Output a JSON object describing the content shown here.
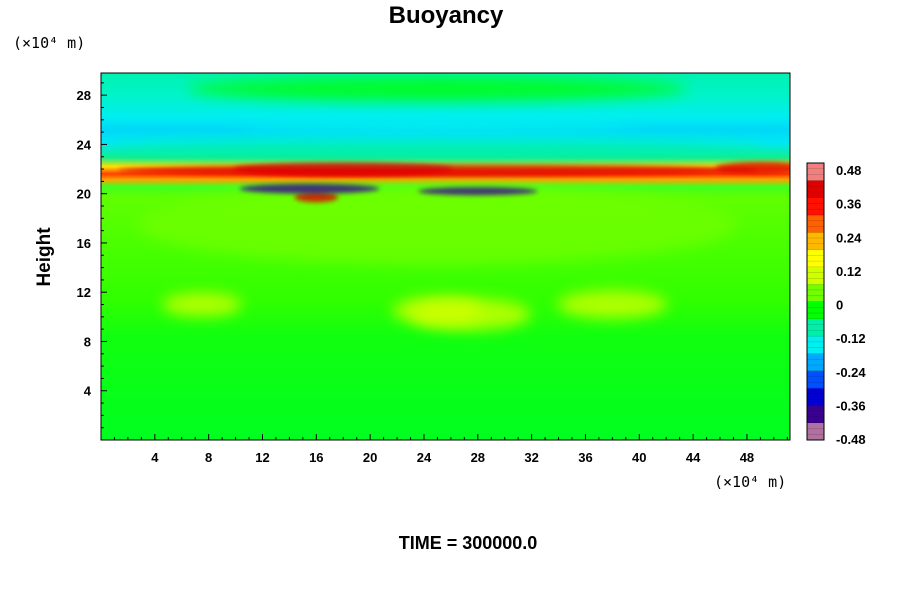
{
  "chart_data": {
    "type": "heatmap",
    "title": "Buoyancy",
    "ylabel": "Height",
    "xlabel": "",
    "x_unit": "(×10⁴ m)",
    "y_unit": "(×10⁴ m)",
    "x_ticks": [
      4,
      8,
      12,
      16,
      20,
      24,
      28,
      32,
      36,
      40,
      44,
      48
    ],
    "y_ticks": [
      4,
      8,
      12,
      16,
      20,
      24,
      28
    ],
    "xlim": [
      0,
      51.2
    ],
    "ylim": [
      0,
      29.8
    ],
    "colorbar": {
      "labels": [
        "0.48",
        "0.36",
        "0.24",
        "0.12",
        "0",
        "-0.12",
        "-0.24",
        "-0.36",
        "-0.48"
      ],
      "range": [
        -0.48,
        0.48
      ],
      "colors": [
        "#b070a0",
        "#3a0090",
        "#0000d0",
        "#0050ff",
        "#00a8ff",
        "#00f0f0",
        "#00f0a8",
        "#00ff00",
        "#70ff00",
        "#d0ff00",
        "#ffff00",
        "#ffb800",
        "#ff6000",
        "#ff1000",
        "#e00000",
        "#f08080"
      ]
    },
    "features": [
      {
        "x": 25.0,
        "y": 10.5,
        "value": 0.06
      },
      {
        "x": 7.5,
        "y": 11.0,
        "value": 0.08
      },
      {
        "x": 27.5,
        "y": 10.2,
        "value": 0.1
      },
      {
        "x": 38.0,
        "y": 11.0,
        "value": 0.06
      },
      {
        "x": 25.0,
        "y": 17.5,
        "value": 0.03
      },
      {
        "x": 25.0,
        "y": 21.9,
        "value": 0.38
      },
      {
        "x": 18.0,
        "y": 22.0,
        "value": 0.36
      },
      {
        "x": 49.0,
        "y": 22.1,
        "value": 0.38
      },
      {
        "x": 16.0,
        "y": 19.7,
        "value": 0.42
      },
      {
        "x": 15.5,
        "y": 20.4,
        "value": -0.42
      },
      {
        "x": 28.0,
        "y": 20.2,
        "value": -0.38
      },
      {
        "x": 25.0,
        "y": 23.6,
        "value": -0.1
      },
      {
        "x": 25.0,
        "y": 25.6,
        "value": -0.15
      },
      {
        "x": 25.0,
        "y": 28.5,
        "value": -0.06
      }
    ]
  },
  "footer": {
    "time_label": "TIME = 300000.0"
  }
}
